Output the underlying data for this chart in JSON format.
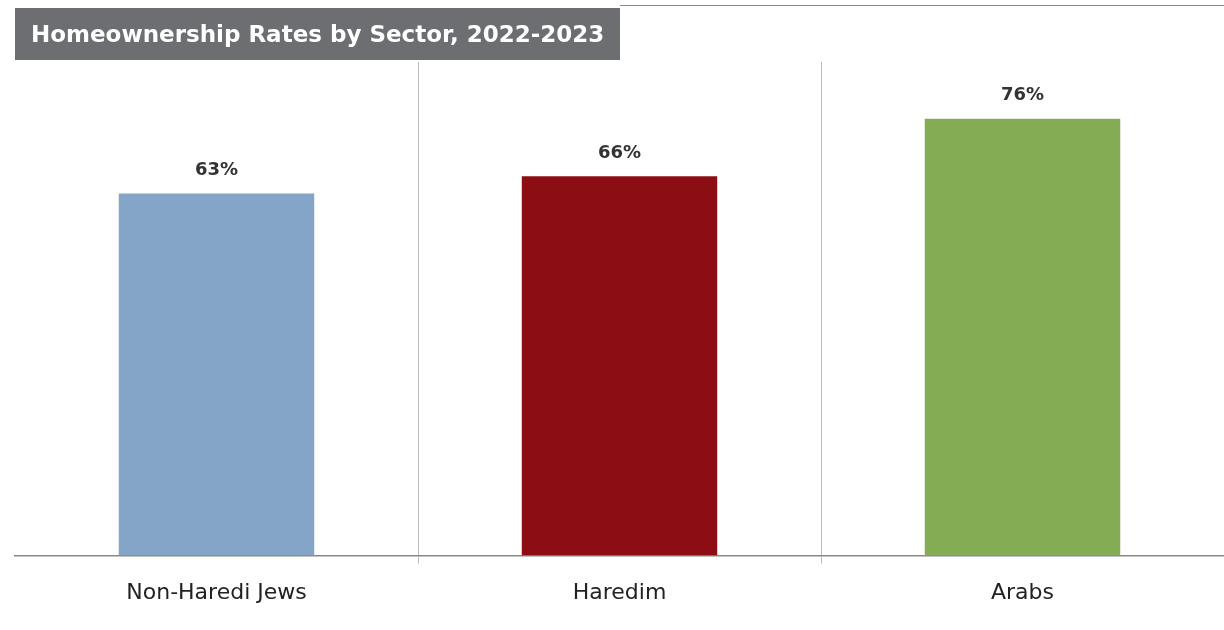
{
  "chart_data": {
    "type": "bar",
    "title": "Homeownership Rates by Sector, 2022-2023",
    "categories": [
      "Non-Haredi Jews",
      "Haredim",
      "Arabs"
    ],
    "values": [
      63,
      66,
      76
    ],
    "colors": [
      "#84a4c8",
      "#8c0e14",
      "#84ac54"
    ],
    "value_labels": [
      "63%",
      "66%",
      "76%"
    ],
    "grid": "x",
    "legend": false
  }
}
